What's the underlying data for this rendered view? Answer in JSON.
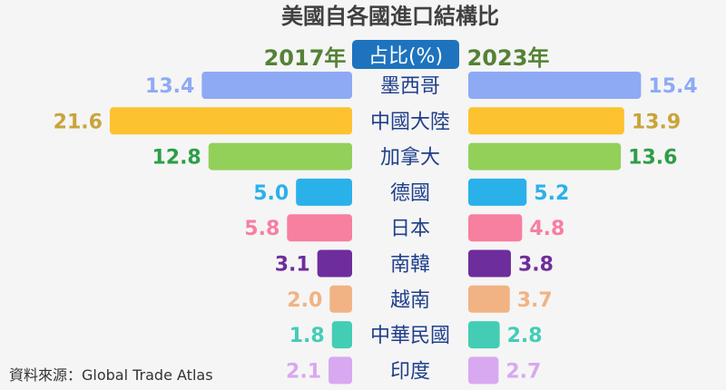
{
  "chart_data": {
    "type": "bar",
    "title": "美國自各國進口結構比",
    "center_header": "占比(%)",
    "source": "資料來源：Global Trade Atlas",
    "categories": [
      "墨西哥",
      "中國大陸",
      "加拿大",
      "德國",
      "日本",
      "南韓",
      "越南",
      "中華民國",
      "印度"
    ],
    "series": [
      {
        "name": "2017年",
        "values": [
          13.4,
          21.6,
          12.8,
          5.0,
          5.8,
          3.1,
          2.0,
          1.8,
          2.1
        ]
      },
      {
        "name": "2023年",
        "values": [
          15.4,
          13.9,
          13.6,
          5.2,
          4.8,
          3.8,
          3.7,
          2.8,
          2.7
        ]
      }
    ],
    "value_labels_2017": [
      "13.4",
      "21.6",
      "12.8",
      "5.0",
      "5.8",
      "3.1",
      "2.0",
      "1.8",
      "2.1"
    ],
    "value_labels_2023": [
      "15.4",
      "13.9",
      "13.6",
      "5.2",
      "4.8",
      "3.8",
      "3.7",
      "2.8",
      "2.7"
    ],
    "bar_colors": [
      "#8eaaf5",
      "#fdc22f",
      "#92d05a",
      "#2bb1ea",
      "#f77fa0",
      "#6e2d9c",
      "#f1b383",
      "#43cdb5",
      "#d8a8f0"
    ],
    "label_colors": [
      "#8eaaf5",
      "#c9a43a",
      "#2e9e47",
      "#2bb1ea",
      "#f77fa0",
      "#6e2d9c",
      "#f1b383",
      "#43cdb5",
      "#d8a8f0"
    ],
    "year_color": "#548235",
    "header_color": "#1e73be",
    "category_color": "#1f3f8a",
    "title_color": "#404040",
    "xmax": 22
  }
}
